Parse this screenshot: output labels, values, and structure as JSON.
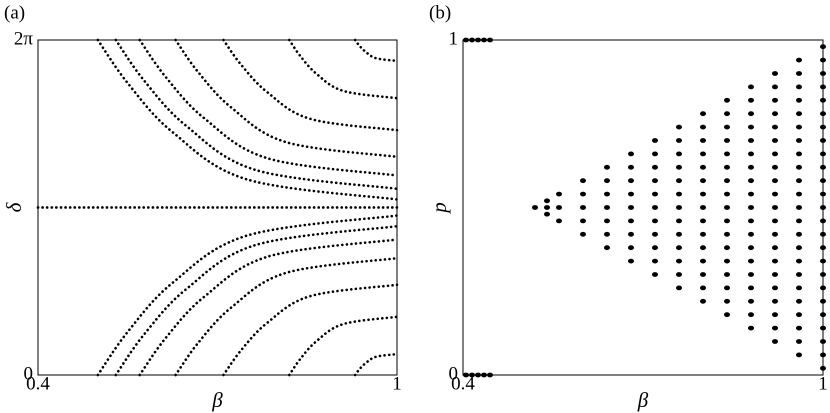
{
  "chart_data": [
    {
      "type": "line",
      "label": "(a)",
      "x_label": "β",
      "y_label": "δ",
      "color": "#000000",
      "xlim": [
        0.4,
        1
      ],
      "xticks": [
        0.4,
        1
      ],
      "ylim": [
        0,
        6.283
      ],
      "yticks": [
        0,
        {
          "value": 6.283,
          "label": "2π"
        }
      ],
      "series": [
        {
          "x": [
            0.4,
            1
          ],
          "values": [
            3.142,
            3.142
          ]
        },
        {
          "x": [
            0.5,
            0.55,
            0.625,
            0.75,
            1
          ],
          "values": [
            6.283,
            5.473,
            4.554,
            3.666,
            3.292
          ]
        },
        {
          "x": [
            0.53,
            0.577,
            0.648,
            0.765,
            1
          ],
          "values": [
            6.283,
            5.527,
            4.67,
            3.841,
            3.492
          ]
        },
        {
          "x": [
            0.57,
            0.613,
            0.678,
            0.785,
            1
          ],
          "values": [
            6.283,
            5.595,
            4.814,
            4.06,
            3.742
          ]
        },
        {
          "x": [
            0.63,
            0.667,
            0.723,
            0.815,
            1
          ],
          "values": [
            6.283,
            5.69,
            5.017,
            4.366,
            4.092
          ]
        },
        {
          "x": [
            0.71,
            0.739,
            0.783,
            0.855,
            1
          ],
          "values": [
            6.283,
            5.825,
            5.306,
            4.804,
            4.592
          ]
        },
        {
          "x": [
            0.82,
            0.838,
            0.865,
            0.91,
            1
          ],
          "values": [
            6.283,
            5.988,
            5.653,
            5.329,
            5.192
          ]
        },
        {
          "x": [
            0.93,
            0.937,
            0.948,
            0.965,
            1
          ],
          "values": [
            6.283,
            6.178,
            6.057,
            5.941,
            5.892
          ]
        },
        {
          "x": [
            0.5,
            0.55,
            0.625,
            0.75,
            1
          ],
          "values": [
            0,
            0.81,
            1.729,
            2.617,
            2.991
          ]
        },
        {
          "x": [
            0.53,
            0.577,
            0.648,
            0.765,
            1
          ],
          "values": [
            0,
            0.756,
            1.613,
            2.442,
            2.791
          ]
        },
        {
          "x": [
            0.57,
            0.613,
            0.678,
            0.785,
            1
          ],
          "values": [
            0,
            0.688,
            1.469,
            2.223,
            2.541
          ]
        },
        {
          "x": [
            0.63,
            0.667,
            0.723,
            0.815,
            1
          ],
          "values": [
            0,
            0.593,
            1.266,
            1.917,
            2.191
          ]
        },
        {
          "x": [
            0.71,
            0.739,
            0.783,
            0.855,
            1
          ],
          "values": [
            0,
            0.458,
            0.977,
            1.479,
            1.691
          ]
        },
        {
          "x": [
            0.82,
            0.838,
            0.865,
            0.91,
            1
          ],
          "values": [
            0,
            0.295,
            0.63,
            0.954,
            1.091
          ]
        },
        {
          "x": [
            0.93,
            0.937,
            0.948,
            0.965,
            1
          ],
          "values": [
            0,
            0.105,
            0.226,
            0.342,
            0.391
          ]
        }
      ]
    },
    {
      "type": "scatter",
      "label": "(b)",
      "x_label": "β",
      "y_label": "p",
      "color": "#000000",
      "xlim": [
        0.4,
        1
      ],
      "xticks": [
        0.4,
        1
      ],
      "ylim": [
        0,
        1
      ],
      "yticks": [
        0,
        1
      ],
      "series": [
        {
          "x": 0.405,
          "values": [
            0,
            1
          ]
        },
        {
          "x": 0.415,
          "values": [
            0,
            1
          ]
        },
        {
          "x": 0.425,
          "values": [
            0,
            1
          ]
        },
        {
          "x": 0.435,
          "values": [
            0,
            1
          ]
        },
        {
          "x": 0.445,
          "values": [
            0,
            1
          ]
        },
        {
          "x": 0.52,
          "values": [
            0.5
          ]
        },
        {
          "x": 0.54,
          "values": [
            0.48,
            0.5,
            0.52
          ]
        },
        {
          "x": 0.56,
          "values": [
            0.46,
            0.5,
            0.54
          ]
        },
        {
          "x": 0.6,
          "values": [
            0.42,
            0.46,
            0.5,
            0.54,
            0.58
          ]
        },
        {
          "x": 0.64,
          "values": [
            0.38,
            0.42,
            0.46,
            0.5,
            0.54,
            0.58,
            0.62
          ]
        },
        {
          "x": 0.68,
          "values": [
            0.34,
            0.38,
            0.42,
            0.46,
            0.5,
            0.54,
            0.58,
            0.62,
            0.66
          ]
        },
        {
          "x": 0.72,
          "values": [
            0.3,
            0.34,
            0.38,
            0.42,
            0.46,
            0.5,
            0.54,
            0.58,
            0.62,
            0.66,
            0.7
          ]
        },
        {
          "x": 0.76,
          "values": [
            0.26,
            0.3,
            0.34,
            0.38,
            0.42,
            0.46,
            0.5,
            0.54,
            0.58,
            0.62,
            0.66,
            0.7,
            0.74
          ]
        },
        {
          "x": 0.8,
          "values": [
            0.22,
            0.26,
            0.3,
            0.34,
            0.38,
            0.42,
            0.46,
            0.5,
            0.54,
            0.58,
            0.62,
            0.66,
            0.7,
            0.74,
            0.78
          ]
        },
        {
          "x": 0.84,
          "values": [
            0.18,
            0.22,
            0.26,
            0.3,
            0.34,
            0.38,
            0.42,
            0.46,
            0.5,
            0.54,
            0.58,
            0.62,
            0.66,
            0.7,
            0.74,
            0.78,
            0.82
          ]
        },
        {
          "x": 0.88,
          "values": [
            0.14,
            0.18,
            0.22,
            0.26,
            0.3,
            0.34,
            0.38,
            0.42,
            0.46,
            0.5,
            0.54,
            0.58,
            0.62,
            0.66,
            0.7,
            0.74,
            0.78,
            0.82,
            0.86
          ]
        },
        {
          "x": 0.92,
          "values": [
            0.1,
            0.14,
            0.18,
            0.22,
            0.26,
            0.3,
            0.34,
            0.38,
            0.42,
            0.46,
            0.5,
            0.54,
            0.58,
            0.62,
            0.66,
            0.7,
            0.74,
            0.78,
            0.82,
            0.86,
            0.9
          ]
        },
        {
          "x": 0.96,
          "values": [
            0.06,
            0.1,
            0.14,
            0.18,
            0.22,
            0.26,
            0.3,
            0.34,
            0.38,
            0.42,
            0.46,
            0.5,
            0.54,
            0.58,
            0.62,
            0.66,
            0.7,
            0.74,
            0.78,
            0.82,
            0.86,
            0.9,
            0.94
          ]
        },
        {
          "x": 1,
          "values": [
            0.02,
            0.06,
            0.1,
            0.14,
            0.18,
            0.22,
            0.26,
            0.3,
            0.34,
            0.38,
            0.42,
            0.46,
            0.5,
            0.54,
            0.58,
            0.62,
            0.66,
            0.7,
            0.74,
            0.78,
            0.82,
            0.86,
            0.9,
            0.94,
            0.98
          ]
        }
      ]
    }
  ]
}
